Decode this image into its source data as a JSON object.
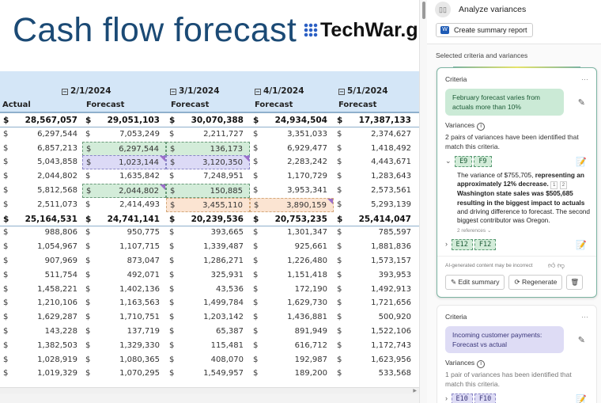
{
  "sheet": {
    "title": "Cash flow forecast",
    "dates": [
      "2/1/2024",
      "3/1/2024",
      "4/1/2024",
      "5/1/2024"
    ],
    "col_headers": [
      "Actual",
      "Forecast",
      "Forecast",
      "Forecast",
      "Forecast"
    ],
    "currency": "$",
    "rows": [
      {
        "total": true,
        "v": [
          "28,567,057",
          "29,051,103",
          "30,070,388",
          "24,934,504",
          "17,387,133"
        ]
      },
      {
        "v": [
          "6,297,544",
          "7,053,249",
          "2,211,727",
          "3,351,033",
          "2,374,627"
        ]
      },
      {
        "v": [
          "6,857,213",
          "6,297,544",
          "136,173",
          "6,929,477",
          "1,418,492"
        ],
        "hl": {
          "1": "g",
          "2": "g"
        }
      },
      {
        "v": [
          "5,043,858",
          "1,023,144",
          "3,120,350",
          "2,283,242",
          "4,443,671"
        ],
        "hl": {
          "1": "p",
          "2": "p"
        },
        "corner": [
          1,
          2
        ]
      },
      {
        "v": [
          "2,044,802",
          "1,635,842",
          "7,248,951",
          "1,170,729",
          "1,283,643"
        ]
      },
      {
        "v": [
          "5,812,568",
          "2,044,802",
          "150,885",
          "3,953,341",
          "2,573,561"
        ],
        "hl": {
          "1": "g",
          "2": "g"
        },
        "corner": [
          1
        ]
      },
      {
        "v": [
          "2,511,073",
          "2,414,493",
          "3,455,110",
          "3,890,159",
          "5,293,139"
        ],
        "hl": {
          "2": "o",
          "3": "o"
        },
        "corner": [
          3
        ]
      },
      {
        "total": true,
        "v": [
          "25,164,531",
          "24,741,141",
          "20,239,536",
          "20,753,235",
          "25,414,047"
        ]
      },
      {
        "v": [
          "988,806",
          "950,775",
          "393,665",
          "1,301,347",
          "785,597"
        ]
      },
      {
        "v": [
          "1,054,967",
          "1,107,715",
          "1,339,487",
          "925,661",
          "1,881,836"
        ]
      },
      {
        "v": [
          "907,969",
          "873,047",
          "1,286,271",
          "1,226,480",
          "1,573,157"
        ]
      },
      {
        "v": [
          "511,754",
          "492,071",
          "325,931",
          "1,151,418",
          "393,953"
        ]
      },
      {
        "v": [
          "1,458,221",
          "1,402,136",
          "43,536",
          "172,190",
          "1,492,913"
        ]
      },
      {
        "v": [
          "1,210,106",
          "1,163,563",
          "1,499,784",
          "1,629,730",
          "1,721,656"
        ]
      },
      {
        "v": [
          "1,629,287",
          "1,710,751",
          "1,203,142",
          "1,436,881",
          "500,920"
        ]
      },
      {
        "v": [
          "143,228",
          "137,719",
          "65,387",
          "891,949",
          "1,522,106"
        ]
      },
      {
        "v": [
          "1,382,503",
          "1,329,330",
          "115,481",
          "616,712",
          "1,172,743"
        ]
      },
      {
        "v": [
          "1,028,919",
          "1,080,365",
          "408,070",
          "192,987",
          "1,623,956"
        ]
      },
      {
        "v": [
          "1,019,329",
          "1,070,295",
          "1,549,957",
          "189,200",
          "533,568"
        ]
      }
    ]
  },
  "pane": {
    "title": "Analyze variances",
    "create_report": "Create summary report",
    "selected_label": "Selected criteria and variances",
    "card1": {
      "criteria_label": "Criteria",
      "criteria_text": "February forecast varies from actuals more than 10%",
      "variances_label": "Variances",
      "variances_desc": "2 pairs of variances have been identified that match this criteria.",
      "pair1": [
        "E9",
        "F9"
      ],
      "summary_plain1": "The variance of $755,705, ",
      "summary_bold1": "representing an approximately 12% decrease.",
      "ref1": "1",
      "ref2": "2",
      "summary_bold2": "Washington state sales was $505,685 resulting in the biggest impact to actuals",
      "summary_plain2": " and driving difference to forecast. The second biggest contributor was Oregon.",
      "references": "2 references",
      "pair2": [
        "E12",
        "F12"
      ],
      "disclaimer": "AI-generated content may be incorrect",
      "edit": "Edit summary",
      "regenerate": "Regenerate"
    },
    "card2": {
      "criteria_label": "Criteria",
      "criteria_text": "Incoming customer payments: Forecast vs actual",
      "variances_label": "Variances",
      "variances_desc": "1 pair of variances has been identified that match this criteria.",
      "pair1": [
        "E10",
        "F10"
      ]
    }
  },
  "watermark": "TechWar.gr"
}
